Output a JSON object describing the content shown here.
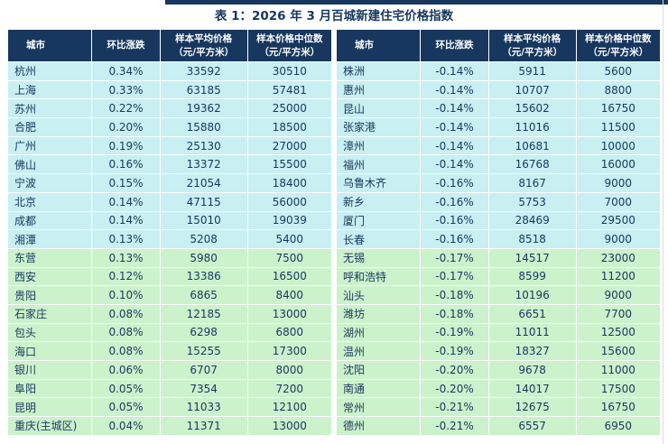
{
  "chart_data": {
    "type": "table",
    "title": "表 1：2026 年 3 月百城新建住宅价格指数",
    "headers": {
      "city": "城市",
      "change": "环比涨跌",
      "avg_price": "样本平均价格",
      "median_price": "样本价格中位数",
      "unit": "（元/平方米）"
    },
    "left_rows": [
      {
        "city": "杭州",
        "change": "0.34%",
        "avg": "33592",
        "median": "30510",
        "group": "cyan"
      },
      {
        "city": "上海",
        "change": "0.33%",
        "avg": "63185",
        "median": "57481",
        "group": "cyan"
      },
      {
        "city": "苏州",
        "change": "0.22%",
        "avg": "19362",
        "median": "25000",
        "group": "cyan"
      },
      {
        "city": "合肥",
        "change": "0.20%",
        "avg": "15880",
        "median": "18500",
        "group": "cyan"
      },
      {
        "city": "广州",
        "change": "0.19%",
        "avg": "25130",
        "median": "27000",
        "group": "cyan"
      },
      {
        "city": "佛山",
        "change": "0.16%",
        "avg": "13372",
        "median": "15500",
        "group": "cyan"
      },
      {
        "city": "宁波",
        "change": "0.15%",
        "avg": "21054",
        "median": "18400",
        "group": "cyan"
      },
      {
        "city": "北京",
        "change": "0.14%",
        "avg": "47115",
        "median": "56000",
        "group": "cyan"
      },
      {
        "city": "成都",
        "change": "0.14%",
        "avg": "15010",
        "median": "19039",
        "group": "cyan"
      },
      {
        "city": "湘潭",
        "change": "0.13%",
        "avg": "5208",
        "median": "5400",
        "group": "cyan"
      },
      {
        "city": "东营",
        "change": "0.13%",
        "avg": "5980",
        "median": "7500",
        "group": "green"
      },
      {
        "city": "西安",
        "change": "0.12%",
        "avg": "13386",
        "median": "16500",
        "group": "green"
      },
      {
        "city": "贵阳",
        "change": "0.10%",
        "avg": "6865",
        "median": "8400",
        "group": "green"
      },
      {
        "city": "石家庄",
        "change": "0.08%",
        "avg": "12185",
        "median": "13000",
        "group": "green"
      },
      {
        "city": "包头",
        "change": "0.08%",
        "avg": "6298",
        "median": "6800",
        "group": "green"
      },
      {
        "city": "海口",
        "change": "0.08%",
        "avg": "15255",
        "median": "17300",
        "group": "green"
      },
      {
        "city": "银川",
        "change": "0.06%",
        "avg": "6707",
        "median": "8000",
        "group": "green"
      },
      {
        "city": "阜阳",
        "change": "0.05%",
        "avg": "7354",
        "median": "7200",
        "group": "green"
      },
      {
        "city": "昆明",
        "change": "0.05%",
        "avg": "11033",
        "median": "12100",
        "group": "green"
      },
      {
        "city": "重庆(主城区)",
        "change": "0.04%",
        "avg": "11371",
        "median": "13000",
        "group": "green"
      }
    ],
    "right_rows": [
      {
        "city": "株洲",
        "change": "-0.14%",
        "avg": "5911",
        "median": "5600",
        "group": "cyan"
      },
      {
        "city": "惠州",
        "change": "-0.14%",
        "avg": "10707",
        "median": "8800",
        "group": "cyan"
      },
      {
        "city": "昆山",
        "change": "-0.14%",
        "avg": "15602",
        "median": "16750",
        "group": "cyan"
      },
      {
        "city": "张家港",
        "change": "-0.14%",
        "avg": "11016",
        "median": "11500",
        "group": "cyan"
      },
      {
        "city": "漳州",
        "change": "-0.14%",
        "avg": "10681",
        "median": "10000",
        "group": "cyan"
      },
      {
        "city": "福州",
        "change": "-0.14%",
        "avg": "16768",
        "median": "16000",
        "group": "cyan"
      },
      {
        "city": "乌鲁木齐",
        "change": "-0.16%",
        "avg": "8167",
        "median": "9000",
        "group": "cyan"
      },
      {
        "city": "新乡",
        "change": "-0.16%",
        "avg": "5753",
        "median": "7000",
        "group": "cyan"
      },
      {
        "city": "厦门",
        "change": "-0.16%",
        "avg": "28469",
        "median": "29500",
        "group": "cyan"
      },
      {
        "city": "长春",
        "change": "-0.16%",
        "avg": "8518",
        "median": "9000",
        "group": "cyan"
      },
      {
        "city": "无锡",
        "change": "-0.17%",
        "avg": "14517",
        "median": "23000",
        "group": "green"
      },
      {
        "city": "呼和浩特",
        "change": "-0.17%",
        "avg": "8599",
        "median": "11200",
        "group": "green"
      },
      {
        "city": "汕头",
        "change": "-0.18%",
        "avg": "10196",
        "median": "9000",
        "group": "green"
      },
      {
        "city": "潍坊",
        "change": "-0.18%",
        "avg": "6651",
        "median": "7700",
        "group": "green"
      },
      {
        "city": "湖州",
        "change": "-0.19%",
        "avg": "11011",
        "median": "12500",
        "group": "green"
      },
      {
        "city": "温州",
        "change": "-0.19%",
        "avg": "18327",
        "median": "15600",
        "group": "green"
      },
      {
        "city": "沈阳",
        "change": "-0.20%",
        "avg": "9678",
        "median": "11000",
        "group": "green"
      },
      {
        "city": "南通",
        "change": "-0.20%",
        "avg": "14017",
        "median": "17500",
        "group": "green"
      },
      {
        "city": "常州",
        "change": "-0.21%",
        "avg": "12675",
        "median": "16750",
        "group": "green"
      },
      {
        "city": "德州",
        "change": "-0.21%",
        "avg": "6557",
        "median": "6950",
        "group": "green"
      }
    ]
  },
  "colors": {
    "header_bg": "#17375E",
    "title_text": "#17375E",
    "cell_text": "#17375E",
    "row_rising": "#C8EFF2",
    "row_falling_group": "#CBF2CB",
    "grid_line": "#FFFFFF"
  }
}
